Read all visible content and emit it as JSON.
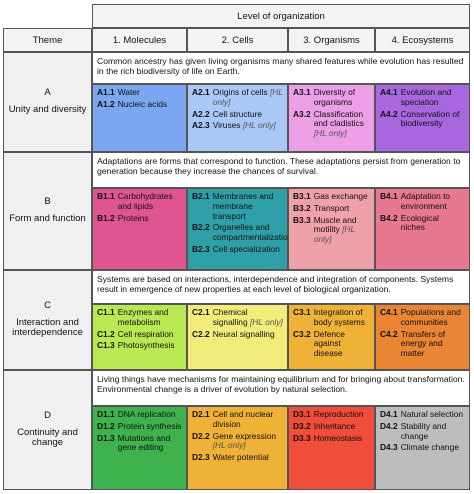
{
  "header": {
    "level_title": "Level of organization",
    "theme_label": "Theme",
    "levels": [
      "1. Molecules",
      "2. Cells",
      "3. Organisms",
      "4. Ecosystems"
    ]
  },
  "colors": {
    "A": [
      "#7aa7f0",
      "#a9c8f5",
      "#ec9ee6",
      "#a866df"
    ],
    "B": [
      "#e0558f",
      "#2fa0aa",
      "#f0a0a8",
      "#e87892"
    ],
    "C": [
      "#b8e852",
      "#f3ec7a",
      "#f0b236",
      "#e98533"
    ],
    "D": [
      "#3fb24e",
      "#f0b236",
      "#f04d3a",
      "#bdbdbd"
    ]
  },
  "themes": [
    {
      "letter": "A",
      "name": "Unity and diversity",
      "statement": "Common ancestry has given living organisms many shared features while evolution has resulted in the rich biodiversity of life on Earth.",
      "cells": [
        [
          {
            "code": "A1.1",
            "text": "Water"
          },
          {
            "code": "A1.2",
            "text": "Nucleic acids"
          }
        ],
        [
          {
            "code": "A2.1",
            "text": "Origins of cells",
            "hl": "[HL only]"
          },
          {
            "code": "A2.2",
            "text": "Cell structure"
          },
          {
            "code": "A2.3",
            "text": "Viruses",
            "hl": "[HL only]"
          }
        ],
        [
          {
            "code": "A3.1",
            "text": "Diversity of organisms"
          },
          {
            "code": "A3.2",
            "text": "Classification and cladistics",
            "hl": "[HL only]"
          }
        ],
        [
          {
            "code": "A4.1",
            "text": "Evolution and speciation"
          },
          {
            "code": "A4.2",
            "text": "Conservation of biodiversity"
          }
        ]
      ]
    },
    {
      "letter": "B",
      "name": "Form and function",
      "statement": "Adaptations are forms that correspond to function. These adaptations persist from generation to generation because they increase the chances of survival.",
      "cells": [
        [
          {
            "code": "B1.1",
            "text": "Carbohydrates and lipids"
          },
          {
            "code": "B1.2",
            "text": "Proteins"
          }
        ],
        [
          {
            "code": "B2.1",
            "text": "Membranes and membrane transport"
          },
          {
            "code": "B2.2",
            "text": "Organelles and compartmentalization"
          },
          {
            "code": "B2.3",
            "text": "Cell specialization"
          }
        ],
        [
          {
            "code": "B3.1",
            "text": "Gas exchange"
          },
          {
            "code": "B3.2",
            "text": "Transport"
          },
          {
            "code": "B3.3",
            "text": "Muscle and motility",
            "hl": "[HL only]"
          }
        ],
        [
          {
            "code": "B4.1",
            "text": "Adaptation to environment"
          },
          {
            "code": "B4.2",
            "text": "Ecological niches"
          }
        ]
      ]
    },
    {
      "letter": "C",
      "name": "Interaction and interdependence",
      "statement": "Systems are based on interactions, interdependence and integration of components. Systems result in emergence of new properties at each level of biological organization.",
      "cells": [
        [
          {
            "code": "C1.1",
            "text": "Enzymes and metabolism"
          },
          {
            "code": "C1.2",
            "text": "Cell respiration"
          },
          {
            "code": "C1.3",
            "text": "Photosynthesis"
          }
        ],
        [
          {
            "code": "C2.1",
            "text": "Chemical signalling",
            "hl": "[HL only]"
          },
          {
            "code": "C2.2",
            "text": "Neural signalling"
          }
        ],
        [
          {
            "code": "C3.1",
            "text": "Integration of body systems"
          },
          {
            "code": "C3.2",
            "text": "Defence against disease"
          }
        ],
        [
          {
            "code": "C4.1",
            "text": "Populations and communities"
          },
          {
            "code": "C4.2",
            "text": "Transfers of energy and matter"
          }
        ]
      ]
    },
    {
      "letter": "D",
      "name": "Continuity and change",
      "statement": "Living things have mechanisms for maintaining equilibrium and for bringing about transformation. Environmental change is a driver of evolution by natural selection.",
      "cells": [
        [
          {
            "code": "D1.1",
            "text": "DNA replication"
          },
          {
            "code": "D1.2",
            "text": "Protein synthesis"
          },
          {
            "code": "D1.3",
            "text": "Mutations and gene editing"
          }
        ],
        [
          {
            "code": "D2.1",
            "text": "Cell and nuclear division"
          },
          {
            "code": "D2.2",
            "text": "Gene expression",
            "hl": "[HL only]"
          },
          {
            "code": "D2.3",
            "text": "Water potential"
          }
        ],
        [
          {
            "code": "D3.1",
            "text": "Reproduction"
          },
          {
            "code": "D3.2",
            "text": "Inheritance"
          },
          {
            "code": "D3.3",
            "text": "Homeostasis"
          }
        ],
        [
          {
            "code": "D4.1",
            "text": "Natural selection"
          },
          {
            "code": "D4.2",
            "text": "Stability and change"
          },
          {
            "code": "D4.3",
            "text": "Climate change"
          }
        ]
      ]
    }
  ]
}
